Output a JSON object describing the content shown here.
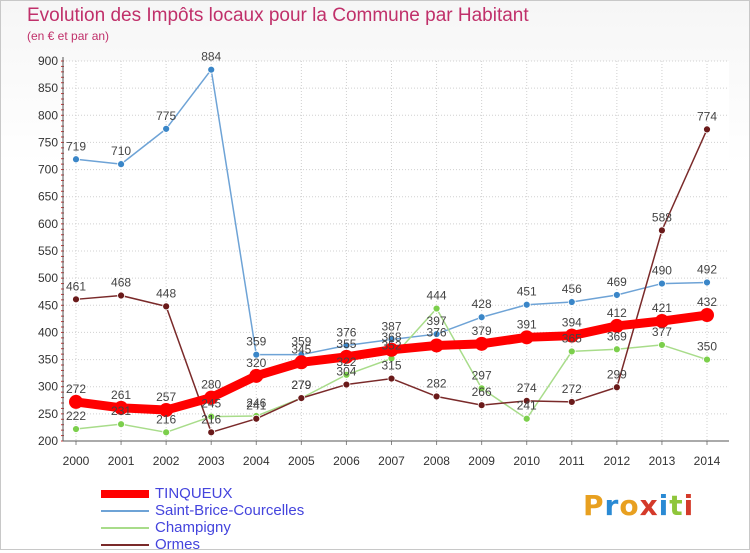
{
  "title": "Evolution des Impôts locaux pour la Commune par Habitant",
  "subtitle": "(en € et par an)",
  "logo_text": "Proxiti",
  "colors": {
    "title": "#c0306a",
    "legend_text": "#4444dd",
    "grid": "#d0d0d0",
    "axis_text": "#333333"
  },
  "chart_data": {
    "type": "line",
    "title": "Evolution des Impôts locaux pour la Commune par Habitant",
    "subtitle": "(en € et par an)",
    "xlabel": "",
    "ylabel": "",
    "ylim": [
      200,
      900
    ],
    "yticks": [
      200,
      250,
      300,
      350,
      400,
      450,
      500,
      550,
      600,
      650,
      700,
      750,
      800,
      850,
      900
    ],
    "grid": true,
    "legend_placement": "bottom-left",
    "x": [
      "2000",
      "2001",
      "2002",
      "2003",
      "2004",
      "2005",
      "2006",
      "2007",
      "2008",
      "2009",
      "2010",
      "2011",
      "2012",
      "2013",
      "2014"
    ],
    "series": [
      {
        "name": "Saint-Brice-Courcelles",
        "color": "#6ea3d6",
        "marker": "#3a86c8",
        "values": [
          719,
          710,
          775,
          884,
          359,
          359,
          376,
          387,
          397,
          428,
          451,
          456,
          469,
          490,
          492
        ]
      },
      {
        "name": "Champigny",
        "color": "#a8dc8a",
        "marker": "#7ccf4c",
        "values": [
          222,
          231,
          216,
          245,
          246,
          279,
          322,
          352,
          444,
          297,
          241,
          365,
          369,
          377,
          350
        ]
      },
      {
        "name": "Ormes",
        "color": "#7a2a2a",
        "marker": "#6a1a1a",
        "values": [
          461,
          468,
          448,
          216,
          241,
          279,
          304,
          315,
          282,
          266,
          274,
          272,
          299,
          588,
          774
        ]
      },
      {
        "name": "TINQUEUX",
        "color": "#ff0000",
        "marker": "#ff0000",
        "values": [
          272,
          261,
          257,
          280,
          320,
          345,
          355,
          368,
          376,
          379,
          391,
          394,
          412,
          421,
          432
        ]
      }
    ]
  }
}
